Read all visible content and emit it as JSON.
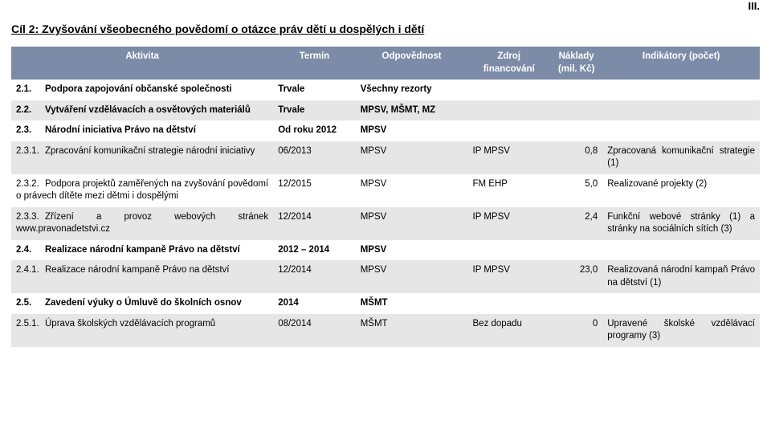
{
  "corner_label": "III.",
  "title": "Cíl 2: Zvyšování všeobecného povědomí o otázce práv dětí u dospělých i dětí",
  "header_bg": "#7c8ba7",
  "header_fg": "#ffffff",
  "row_bg": "#e6e6e6",
  "columns": {
    "activity": "Aktivita",
    "term": "Termín",
    "responsibility": "Odpovědnost",
    "source": "Zdroj financování",
    "cost": "Náklady (mil. Kč)",
    "indicators": "Indikátory (počet)"
  },
  "rows": [
    {
      "num": "2.1.",
      "activity": "Podpora zapojování občanské společnosti",
      "term": "Trvale",
      "responsibility": "Všechny rezorty",
      "source": "",
      "cost": "",
      "indicators": ""
    },
    {
      "num": "2.2.",
      "activity": "Vytváření vzdělávacích a osvětových materiálů",
      "term": "Trvale",
      "responsibility": "MPSV, MŠMT, MZ",
      "source": "",
      "cost": "",
      "indicators": ""
    },
    {
      "num": "2.3.",
      "activity": "Národní iniciativa Právo na dětství",
      "term": "Od roku 2012",
      "responsibility": "MPSV",
      "source": "",
      "cost": "",
      "indicators": ""
    },
    {
      "num": "2.3.1.",
      "activity": "Zpracování komunikační strategie národní iniciativy",
      "term": "06/2013",
      "responsibility": "MPSV",
      "source": "IP MPSV",
      "cost": "0,8",
      "indicators": "Zpracovaná komunikační strategie (1)"
    },
    {
      "num": "2.3.2.",
      "activity": "Podpora projektů zaměřených na zvyšování povědomí o právech dítěte mezi dětmi i dospělými",
      "term": "12/2015",
      "responsibility": "MPSV",
      "source": "FM EHP",
      "cost": "5,0",
      "indicators": "Realizované projekty (2)"
    },
    {
      "num": "2.3.3.",
      "activity": "Zřízení a provoz webových stránek www.pravonadetstvi.cz",
      "term": "12/2014",
      "responsibility": "MPSV",
      "source": "IP MPSV",
      "cost": "2,4",
      "indicators": "Funkční webové stránky (1) a stránky na sociálních sítích (3)"
    },
    {
      "num": "2.4.",
      "activity": "Realizace národní kampaně Právo na dětství",
      "term": "2012 – 2014",
      "responsibility": "MPSV",
      "source": "",
      "cost": "",
      "indicators": ""
    },
    {
      "num": "2.4.1.",
      "activity": "Realizace národní kampaně Právo na dětství",
      "term": "12/2014",
      "responsibility": "MPSV",
      "source": "IP MPSV",
      "cost": "23,0",
      "indicators": "Realizovaná národní kampaň Právo na dětství (1)"
    },
    {
      "num": "2.5.",
      "activity": "Zavedení výuky o Úmluvě do školních osnov",
      "term": "2014",
      "responsibility": "MŠMT",
      "source": "",
      "cost": "",
      "indicators": ""
    },
    {
      "num": "2.5.1.",
      "activity": "Úprava školských vzdělávacích programů",
      "term": "08/2014",
      "responsibility": "MŠMT",
      "source": "Bez dopadu",
      "cost": "0",
      "indicators": "Upravené školské vzdělávací programy (3)"
    }
  ]
}
